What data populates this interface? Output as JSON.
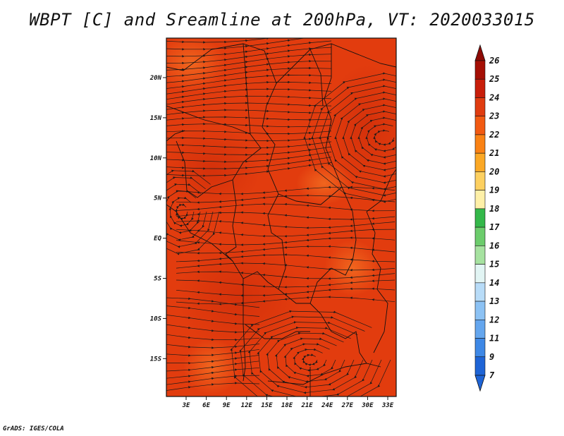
{
  "title": "WBPT [C] and Sreamline at 200hPa, VT: 2020033015",
  "credit": "GrADS: IGES/COLA",
  "map": {
    "lon_ticks": [
      "3E",
      "6E",
      "9E",
      "12E",
      "15E",
      "18E",
      "21E",
      "24E",
      "27E",
      "30E",
      "33E"
    ],
    "lat_ticks": [
      "20N",
      "15N",
      "10N",
      "5N",
      "EQ",
      "5S",
      "10S",
      "15S"
    ],
    "field_color": "#e03a0c",
    "streamline_color": "#1a1a1a"
  },
  "colorbar": {
    "labels": [
      "26",
      "25",
      "24",
      "23",
      "22",
      "21",
      "20",
      "19",
      "18",
      "17",
      "16",
      "15",
      "14",
      "13",
      "12",
      "11",
      "9",
      "7"
    ],
    "colors": [
      "#a50f05",
      "#c81e0a",
      "#e03c10",
      "#f25a12",
      "#fa8214",
      "#fba825",
      "#fdd060",
      "#fef0a8",
      "#34b84a",
      "#6ccc6c",
      "#a6e2a0",
      "#e2f5f4",
      "#b8dcf8",
      "#8cc2f4",
      "#64a6ee",
      "#3e88e6",
      "#1e64d6"
    ],
    "top_arrow_color": "#8e0a04",
    "bottom_arrow_color": "#1e64d6"
  }
}
